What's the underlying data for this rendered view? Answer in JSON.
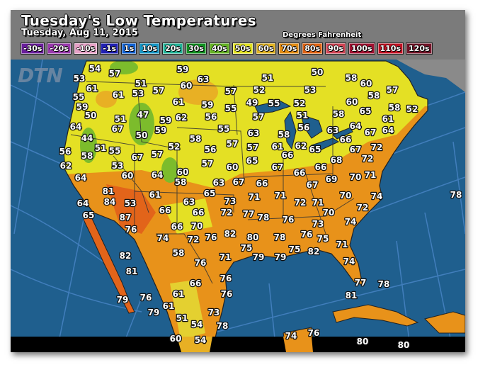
{
  "header": {
    "title": "Tuesday's Low Temperatures",
    "date": "Tuesday, Aug 11, 2015",
    "units": "Degrees Fahrenheit"
  },
  "logo": "DTN",
  "legend": [
    {
      "label": "-30s",
      "color": "#6a1e9c"
    },
    {
      "label": "-20s",
      "color": "#9a3aae"
    },
    {
      "label": "-10s",
      "color": "#e8a2c8"
    },
    {
      "label": "-1s",
      "color": "#2222b4"
    },
    {
      "label": "1s",
      "color": "#1262d2"
    },
    {
      "label": "10s",
      "color": "#1696c4"
    },
    {
      "label": "20s",
      "color": "#22b296"
    },
    {
      "label": "30s",
      "color": "#129222"
    },
    {
      "label": "40s",
      "color": "#64b224"
    },
    {
      "label": "50s",
      "color": "#e2e222"
    },
    {
      "label": "60s",
      "color": "#e2b424"
    },
    {
      "label": "70s",
      "color": "#e28c14"
    },
    {
      "label": "80s",
      "color": "#e06414"
    },
    {
      "label": "90s",
      "color": "#d04454"
    },
    {
      "label": "100s",
      "color": "#a21232"
    },
    {
      "label": "110s",
      "color": "#c21224"
    },
    {
      "label": "120s",
      "color": "#721428"
    }
  ],
  "colors": {
    "ocean": "#1f5f8e",
    "grid": "#4a86c8",
    "north": "#e4e024",
    "south": "#e8921a",
    "green": "#7cbc2c",
    "canada": "#8a8a8a"
  },
  "temperatures": [
    54,
    57,
    59,
    63,
    51,
    50,
    58,
    60,
    57,
    53,
    61,
    61,
    53,
    51,
    57,
    60,
    52,
    53,
    58,
    55,
    61,
    59,
    55,
    57,
    49,
    55,
    52,
    60,
    58,
    65,
    58,
    52,
    59,
    50,
    51,
    47,
    59,
    62,
    56,
    57,
    51,
    61,
    64,
    67,
    50,
    59,
    55,
    58,
    63,
    58,
    56,
    63,
    66,
    64,
    67,
    64,
    44,
    57,
    57,
    61,
    66,
    62,
    65,
    67,
    72,
    72,
    56,
    51,
    55,
    58,
    67,
    57,
    52,
    56,
    57,
    60,
    65,
    68,
    62,
    53,
    60,
    64,
    60,
    58,
    63,
    65,
    67,
    67,
    66,
    66,
    69,
    70,
    71,
    67,
    66,
    64,
    81,
    84,
    53,
    61,
    63,
    73,
    71,
    71,
    72,
    71,
    70,
    74,
    78,
    64,
    65,
    87,
    66,
    66,
    72,
    77,
    78,
    76,
    73,
    70,
    72,
    74,
    76,
    66,
    70,
    82,
    74,
    72,
    76,
    80,
    78,
    76,
    75,
    71,
    75,
    75,
    82,
    79,
    79,
    74,
    77,
    78,
    81,
    82,
    58,
    71,
    76,
    81,
    66,
    76,
    76,
    61,
    79,
    76,
    61,
    79,
    73,
    51,
    54,
    78,
    60,
    54,
    74,
    76,
    80,
    80
  ]
}
